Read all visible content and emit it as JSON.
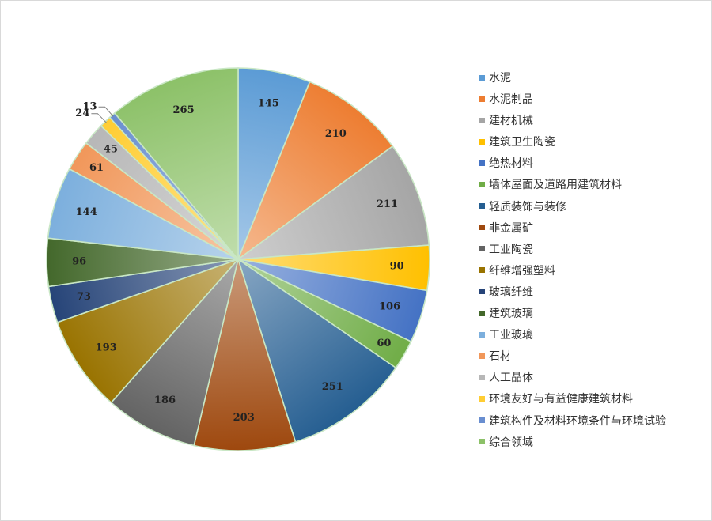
{
  "chart_data": {
    "type": "pie",
    "title": "",
    "legend_position": "right",
    "categories": [
      "水泥",
      "水泥制品",
      "建材机械",
      "建筑卫生陶瓷",
      "绝热材料",
      "墙体屋面及道路用建筑材料",
      "轻质装饰与装修",
      "非金属矿",
      "工业陶瓷",
      "纤维增强塑料",
      "玻璃纤维",
      "建筑玻璃",
      "工业玻璃",
      "石材",
      "人工晶体",
      "环境友好与有益健康建筑材料",
      "建筑构件及材料环境条件与环境试验",
      "综合领域"
    ],
    "values": [
      145,
      210,
      211,
      90,
      106,
      60,
      251,
      203,
      186,
      193,
      73,
      96,
      144,
      61,
      45,
      24,
      13,
      265
    ],
    "colors": [
      "#5b9bd5",
      "#ed7d31",
      "#a5a5a5",
      "#ffc000",
      "#4472c4",
      "#70ad47",
      "#255e91",
      "#9e480e",
      "#636363",
      "#997300",
      "#264478",
      "#43682b",
      "#7cafdd",
      "#f1975a",
      "#b7b7b7",
      "#ffcd33",
      "#698ed0",
      "#8cc168"
    ]
  }
}
